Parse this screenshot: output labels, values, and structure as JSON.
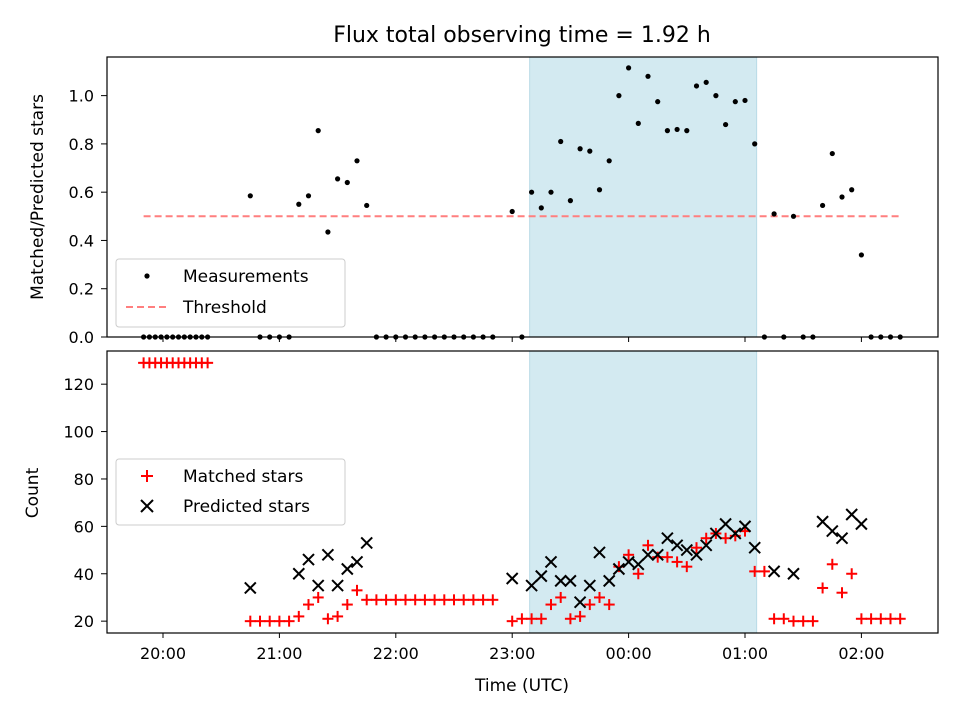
{
  "chart_data": {
    "title": "Flux total observing time = 1.92 h",
    "xlabel": "Time (UTC)",
    "x_ticks": [
      "20:00",
      "21:00",
      "22:00",
      "23:00",
      "00:00",
      "01:00",
      "02:00"
    ],
    "shaded_region": {
      "start": "23:09",
      "end": "01:06",
      "color": "#d3eaf1"
    },
    "panels": [
      {
        "type": "scatter",
        "ylabel": "Matched/Predicted stars",
        "ylim": [
          0,
          1.16
        ],
        "y_ticks": [
          "0.0",
          "0.2",
          "0.4",
          "0.6",
          "0.8",
          "1.0"
        ],
        "legend_position": "lower-left",
        "threshold": {
          "name": "Threshold",
          "value": 0.5,
          "x_start": "19:50",
          "x_end": "02:20",
          "color": "#ff7f7f"
        },
        "series": [
          {
            "name": "Measurements",
            "color": "#000000",
            "points": [
              [
                "19:50",
                0
              ],
              [
                "19:53",
                0
              ],
              [
                "19:56",
                0
              ],
              [
                "19:59",
                0
              ],
              [
                "20:02",
                0
              ],
              [
                "20:05",
                0
              ],
              [
                "20:08",
                0
              ],
              [
                "20:11",
                0
              ],
              [
                "20:14",
                0
              ],
              [
                "20:17",
                0
              ],
              [
                "20:20",
                0
              ],
              [
                "20:23",
                0
              ],
              [
                "20:45",
                0.585
              ],
              [
                "20:50",
                0
              ],
              [
                "20:55",
                0
              ],
              [
                "21:00",
                0
              ],
              [
                "21:05",
                0
              ],
              [
                "21:10",
                0.55
              ],
              [
                "21:15",
                0.585
              ],
              [
                "21:20",
                0.855
              ],
              [
                "21:25",
                0.435
              ],
              [
                "21:30",
                0.655
              ],
              [
                "21:35",
                0.64
              ],
              [
                "21:40",
                0.73
              ],
              [
                "21:45",
                0.545
              ],
              [
                "21:50",
                0
              ],
              [
                "21:55",
                0
              ],
              [
                "22:00",
                0
              ],
              [
                "22:05",
                0
              ],
              [
                "22:10",
                0
              ],
              [
                "22:15",
                0
              ],
              [
                "22:20",
                0
              ],
              [
                "22:25",
                0
              ],
              [
                "22:30",
                0
              ],
              [
                "22:35",
                0
              ],
              [
                "22:40",
                0
              ],
              [
                "22:45",
                0
              ],
              [
                "22:50",
                0
              ],
              [
                "23:00",
                0.52
              ],
              [
                "23:05",
                0
              ],
              [
                "23:10",
                0.6
              ],
              [
                "23:15",
                0.535
              ],
              [
                "23:20",
                0.6
              ],
              [
                "23:25",
                0.81
              ],
              [
                "23:30",
                0.565
              ],
              [
                "23:35",
                0.78
              ],
              [
                "23:40",
                0.77
              ],
              [
                "23:45",
                0.61
              ],
              [
                "23:50",
                0.73
              ],
              [
                "23:55",
                1.0
              ],
              [
                "00:00",
                1.115
              ],
              [
                "00:05",
                0.885
              ],
              [
                "00:10",
                1.08
              ],
              [
                "00:15",
                0.975
              ],
              [
                "00:20",
                0.855
              ],
              [
                "00:25",
                0.86
              ],
              [
                "00:30",
                0.855
              ],
              [
                "00:35",
                1.04
              ],
              [
                "00:40",
                1.055
              ],
              [
                "00:45",
                1.0
              ],
              [
                "00:50",
                0.88
              ],
              [
                "00:55",
                0.975
              ],
              [
                "01:00",
                0.98
              ],
              [
                "01:05",
                0.8
              ],
              [
                "01:10",
                0
              ],
              [
                "01:15",
                0.51
              ],
              [
                "01:20",
                0
              ],
              [
                "01:25",
                0.5
              ],
              [
                "01:30",
                0
              ],
              [
                "01:35",
                0
              ],
              [
                "01:40",
                0.545
              ],
              [
                "01:45",
                0.76
              ],
              [
                "01:50",
                0.58
              ],
              [
                "01:55",
                0.61
              ],
              [
                "02:00",
                0.34
              ],
              [
                "02:05",
                0
              ],
              [
                "02:10",
                0
              ],
              [
                "02:15",
                0
              ],
              [
                "02:20",
                0
              ]
            ]
          }
        ]
      },
      {
        "type": "scatter",
        "ylabel": "Count",
        "ylim": [
          15,
          134
        ],
        "y_ticks": [
          "20",
          "40",
          "60",
          "80",
          "100",
          "120"
        ],
        "legend_position": "center-left",
        "series": [
          {
            "name": "Matched stars",
            "marker": "+",
            "color": "#ff0000",
            "points": [
              [
                "19:50",
                129
              ],
              [
                "19:53",
                129
              ],
              [
                "19:56",
                129
              ],
              [
                "19:59",
                129
              ],
              [
                "20:02",
                129
              ],
              [
                "20:05",
                129
              ],
              [
                "20:08",
                129
              ],
              [
                "20:11",
                129
              ],
              [
                "20:14",
                129
              ],
              [
                "20:17",
                129
              ],
              [
                "20:20",
                129
              ],
              [
                "20:23",
                129
              ],
              [
                "20:45",
                20
              ],
              [
                "20:50",
                20
              ],
              [
                "20:55",
                20
              ],
              [
                "21:00",
                20
              ],
              [
                "21:05",
                20
              ],
              [
                "21:10",
                22
              ],
              [
                "21:15",
                27
              ],
              [
                "21:20",
                30
              ],
              [
                "21:25",
                21
              ],
              [
                "21:30",
                22
              ],
              [
                "21:35",
                27
              ],
              [
                "21:40",
                33
              ],
              [
                "21:45",
                29
              ],
              [
                "21:50",
                29
              ],
              [
                "21:55",
                29
              ],
              [
                "22:00",
                29
              ],
              [
                "22:05",
                29
              ],
              [
                "22:10",
                29
              ],
              [
                "22:15",
                29
              ],
              [
                "22:20",
                29
              ],
              [
                "22:25",
                29
              ],
              [
                "22:30",
                29
              ],
              [
                "22:35",
                29
              ],
              [
                "22:40",
                29
              ],
              [
                "22:45",
                29
              ],
              [
                "22:50",
                29
              ],
              [
                "23:00",
                20
              ],
              [
                "23:05",
                21
              ],
              [
                "23:10",
                21
              ],
              [
                "23:15",
                21
              ],
              [
                "23:20",
                27
              ],
              [
                "23:25",
                30
              ],
              [
                "23:30",
                21
              ],
              [
                "23:35",
                22
              ],
              [
                "23:40",
                27
              ],
              [
                "23:45",
                30
              ],
              [
                "23:50",
                27
              ],
              [
                "23:55",
                43
              ],
              [
                "00:00",
                48
              ],
              [
                "00:05",
                40
              ],
              [
                "00:10",
                52
              ],
              [
                "00:15",
                47
              ],
              [
                "00:20",
                47
              ],
              [
                "00:25",
                45
              ],
              [
                "00:30",
                43
              ],
              [
                "00:35",
                51
              ],
              [
                "00:40",
                55
              ],
              [
                "00:45",
                57
              ],
              [
                "00:50",
                55
              ],
              [
                "00:55",
                56
              ],
              [
                "01:00",
                58
              ],
              [
                "01:05",
                41
              ],
              [
                "01:10",
                41
              ],
              [
                "01:15",
                21
              ],
              [
                "01:20",
                21
              ],
              [
                "01:25",
                20
              ],
              [
                "01:30",
                20
              ],
              [
                "01:35",
                20
              ],
              [
                "01:40",
                34
              ],
              [
                "01:45",
                44
              ],
              [
                "01:50",
                32
              ],
              [
                "01:55",
                40
              ],
              [
                "02:00",
                21
              ],
              [
                "02:05",
                21
              ],
              [
                "02:10",
                21
              ],
              [
                "02:15",
                21
              ],
              [
                "02:20",
                21
              ]
            ]
          },
          {
            "name": "Predicted stars",
            "marker": "x",
            "color": "#000000",
            "points": [
              [
                "20:45",
                34
              ],
              [
                "21:10",
                40
              ],
              [
                "21:15",
                46
              ],
              [
                "21:20",
                35
              ],
              [
                "21:25",
                48
              ],
              [
                "21:30",
                35
              ],
              [
                "21:35",
                42
              ],
              [
                "21:40",
                45
              ],
              [
                "21:45",
                53
              ],
              [
                "23:00",
                38
              ],
              [
                "23:10",
                35
              ],
              [
                "23:15",
                39
              ],
              [
                "23:20",
                45
              ],
              [
                "23:25",
                37
              ],
              [
                "23:30",
                37
              ],
              [
                "23:35",
                28
              ],
              [
                "23:40",
                35
              ],
              [
                "23:45",
                49
              ],
              [
                "23:50",
                37
              ],
              [
                "23:55",
                42
              ],
              [
                "00:00",
                45
              ],
              [
                "00:05",
                44
              ],
              [
                "00:10",
                48
              ],
              [
                "00:15",
                48
              ],
              [
                "00:20",
                55
              ],
              [
                "00:25",
                52
              ],
              [
                "00:30",
                50
              ],
              [
                "00:35",
                48
              ],
              [
                "00:40",
                52
              ],
              [
                "00:45",
                57
              ],
              [
                "00:50",
                61
              ],
              [
                "00:55",
                57
              ],
              [
                "01:00",
                60
              ],
              [
                "01:05",
                51
              ],
              [
                "01:15",
                41
              ],
              [
                "01:25",
                40
              ],
              [
                "01:40",
                62
              ],
              [
                "01:45",
                58
              ],
              [
                "01:50",
                55
              ],
              [
                "01:55",
                65
              ],
              [
                "02:00",
                61
              ]
            ]
          }
        ]
      }
    ]
  }
}
